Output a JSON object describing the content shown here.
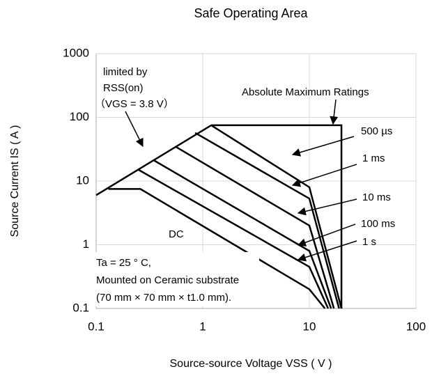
{
  "chart_data": {
    "type": "line",
    "title": "Safe Operating Area",
    "xlabel": "Source-source Voltage VSS ( V )",
    "ylabel": "Source Current IS ( A )",
    "xscale": "log",
    "yscale": "log",
    "grid": true,
    "xlim": [
      0.1,
      100
    ],
    "ylim": [
      0.1,
      1000
    ],
    "xticks": [
      0.1,
      1,
      10,
      100
    ],
    "yticks": [
      0.1,
      1,
      10,
      100,
      1000
    ],
    "series": [
      {
        "color": "#000000",
        "x": [
          0.1,
          1.2
        ],
        "values": [
          6,
          75
        ]
      },
      {
        "color": "#000000",
        "x": [
          1.2,
          20,
          20
        ],
        "values": [
          75,
          75,
          0.1
        ]
      },
      {
        "name": "500 µs",
        "color": "#000000",
        "x": [
          1.2,
          10,
          20
        ],
        "values": [
          75,
          8,
          0.1
        ]
      },
      {
        "name": "1 ms",
        "color": "#000000",
        "x": [
          0.85,
          10,
          19
        ],
        "values": [
          57,
          5.3,
          0.1
        ]
      },
      {
        "name": "10 ms",
        "color": "#000000",
        "x": [
          0.55,
          10,
          17
        ],
        "values": [
          35,
          2,
          0.1
        ]
      },
      {
        "name": "100 ms",
        "color": "#000000",
        "x": [
          0.35,
          10,
          16
        ],
        "values": [
          21,
          0.8,
          0.1
        ]
      },
      {
        "name": "1 s",
        "color": "#000000",
        "x": [
          0.25,
          10,
          15
        ],
        "values": [
          15,
          0.45,
          0.1
        ]
      },
      {
        "name": "DC",
        "color": "#000000",
        "x": [
          0.13,
          0.26,
          10,
          14
        ],
        "values": [
          7.5,
          7.5,
          0.2,
          0.1
        ]
      }
    ],
    "annotations": [
      "limited by",
      "RSS(on)",
      "（VGS = 3.8 V）",
      "Absolute Maximum Ratings",
      "Ta = 25 ° C,",
      "Mounted on Ceramic substrate",
      "(70 mm × 70 mm × t1.0 mm)."
    ]
  }
}
